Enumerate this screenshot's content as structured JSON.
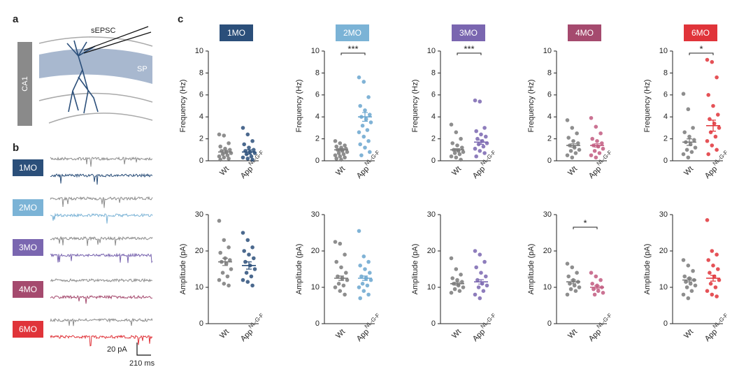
{
  "panels": {
    "a": "a",
    "b": "b",
    "c": "c"
  },
  "diagram": {
    "region": "CA1",
    "recording": "sEPSC",
    "layer": "SP"
  },
  "traces": {
    "ages": [
      "1MO",
      "2MO",
      "3MO",
      "4MO",
      "6MO"
    ],
    "scale_current": "20 pA",
    "scale_time": "210 ms",
    "control_color": "#8c8c8c"
  },
  "chart_data": [
    {
      "type": "strip",
      "title": "1MO",
      "title_color": "#2b4f7a",
      "ylabel": "Frequency (Hz)",
      "ylim": [
        0,
        10
      ],
      "yticks": [
        0,
        2,
        4,
        6,
        8,
        10
      ],
      "categories": [
        "Wt",
        "App"
      ],
      "superscript": "NL-G-F",
      "series": [
        {
          "name": "Wt",
          "color": "#7a7a7a",
          "values": [
            2.4,
            2.3,
            1.6,
            1.3,
            1.1,
            1.0,
            0.9,
            0.8,
            0.7,
            0.6,
            0.5,
            0.4,
            0.3,
            0.2,
            0.1
          ],
          "mean": 0.8,
          "sem": 0.15
        },
        {
          "name": "App",
          "color": "#2b4f7a",
          "values": [
            3.0,
            2.4,
            1.8,
            1.5,
            1.2,
            1.0,
            0.9,
            0.8,
            0.7,
            0.6,
            0.4,
            0.3,
            0.2,
            0.1
          ],
          "mean": 0.8,
          "sem": 0.2
        }
      ]
    },
    {
      "type": "strip",
      "title": "2MO",
      "title_color": "#7bb3d6",
      "ylabel": "Frequency (Hz)",
      "ylim": [
        0,
        10
      ],
      "yticks": [
        0,
        2,
        4,
        6,
        8,
        10
      ],
      "categories": [
        "Wt",
        "App"
      ],
      "superscript": "NL-G-F",
      "significance": "***",
      "series": [
        {
          "name": "Wt",
          "color": "#7a7a7a",
          "values": [
            1.8,
            1.6,
            1.4,
            1.3,
            1.2,
            1.1,
            1.0,
            0.9,
            0.8,
            0.7,
            0.6,
            0.5,
            0.4,
            0.3,
            0.2,
            0.1
          ],
          "mean": 1.0,
          "sem": 0.1
        },
        {
          "name": "App",
          "color": "#6aa6cf",
          "values": [
            7.6,
            7.2,
            5.8,
            5.0,
            4.6,
            4.2,
            4.0,
            3.8,
            3.5,
            3.2,
            2.8,
            2.6,
            2.2,
            1.8,
            1.5,
            1.2,
            0.8,
            0.5
          ],
          "mean": 4.0,
          "sem": 0.4
        }
      ]
    },
    {
      "type": "strip",
      "title": "3MO",
      "title_color": "#7a66b0",
      "ylabel": "Frequency (Hz)",
      "ylim": [
        0,
        10
      ],
      "yticks": [
        0,
        2,
        4,
        6,
        8,
        10
      ],
      "categories": [
        "Wt",
        "App"
      ],
      "superscript": "NL-G-F",
      "significance": "***",
      "series": [
        {
          "name": "Wt",
          "color": "#7a7a7a",
          "values": [
            3.3,
            2.6,
            2.0,
            1.6,
            1.4,
            1.2,
            1.0,
            0.9,
            0.8,
            0.7,
            0.6,
            0.4,
            0.3,
            0.1
          ],
          "mean": 1.0,
          "sem": 0.1
        },
        {
          "name": "App",
          "color": "#7a66b0",
          "values": [
            5.5,
            5.4,
            3.0,
            2.7,
            2.4,
            2.2,
            2.0,
            1.8,
            1.6,
            1.5,
            1.3,
            1.1,
            0.9,
            0.7,
            0.4
          ],
          "mean": 1.7,
          "sem": 0.2
        }
      ]
    },
    {
      "type": "strip",
      "title": "4MO",
      "title_color": "#a54a6e",
      "ylabel": "Frequency (Hz)",
      "ylim": [
        0,
        10
      ],
      "yticks": [
        0,
        2,
        4,
        6,
        8,
        10
      ],
      "categories": [
        "Wt",
        "App"
      ],
      "superscript": "NL-G-F",
      "series": [
        {
          "name": "Wt",
          "color": "#7a7a7a",
          "values": [
            3.7,
            3.0,
            2.5,
            2.1,
            1.8,
            1.6,
            1.4,
            1.2,
            1.0,
            0.9,
            0.7,
            0.5,
            0.3
          ],
          "mean": 1.4,
          "sem": 0.15
        },
        {
          "name": "App",
          "color": "#c25b80",
          "values": [
            3.9,
            3.1,
            2.5,
            2.0,
            1.8,
            1.6,
            1.4,
            1.3,
            1.1,
            0.9,
            0.7,
            0.5,
            0.3
          ],
          "mean": 1.4,
          "sem": 0.15
        }
      ]
    },
    {
      "type": "strip",
      "title": "6MO",
      "title_color": "#e0343a",
      "ylabel": "Frequency (Hz)",
      "ylim": [
        0,
        10
      ],
      "yticks": [
        0,
        2,
        4,
        6,
        8,
        10
      ],
      "categories": [
        "Wt",
        "App"
      ],
      "superscript": "NL-G-F",
      "significance": "*",
      "series": [
        {
          "name": "Wt",
          "color": "#7a7a7a",
          "values": [
            6.1,
            4.7,
            3.0,
            2.6,
            2.2,
            1.9,
            1.7,
            1.5,
            1.2,
            1.0,
            0.8,
            0.6,
            0.3
          ],
          "mean": 1.7,
          "sem": 0.3
        },
        {
          "name": "App",
          "color": "#e0343a",
          "values": [
            9.2,
            9.0,
            7.6,
            6.0,
            5.0,
            4.2,
            3.8,
            3.4,
            3.0,
            2.6,
            2.2,
            1.8,
            1.4,
            1.0,
            0.6
          ],
          "mean": 3.2,
          "sem": 0.5
        }
      ]
    },
    {
      "type": "strip",
      "ylabel": "Amplitude (pA)",
      "ylim": [
        0,
        30
      ],
      "yticks": [
        0,
        10,
        20,
        30
      ],
      "categories": [
        "Wt",
        "App"
      ],
      "superscript": "NL-G-F",
      "series": [
        {
          "name": "Wt",
          "color": "#7a7a7a",
          "values": [
            28.3,
            23.0,
            21.0,
            19.5,
            18.0,
            17.5,
            17.0,
            16.5,
            15.0,
            14.0,
            13.0,
            12.0,
            11.0,
            10.5
          ],
          "mean": 17.0,
          "sem": 1.0
        },
        {
          "name": "App",
          "color": "#2b4f7a",
          "values": [
            25.0,
            23.0,
            21.0,
            20.0,
            19.0,
            18.0,
            17.0,
            16.0,
            15.0,
            14.0,
            13.0,
            12.0,
            11.5,
            10.5
          ],
          "mean": 16.0,
          "sem": 1.0
        }
      ]
    },
    {
      "type": "strip",
      "ylabel": "Amplitude (pA)",
      "ylim": [
        0,
        30
      ],
      "yticks": [
        0,
        10,
        20,
        30
      ],
      "categories": [
        "Wt",
        "App"
      ],
      "superscript": "NL-G-F",
      "series": [
        {
          "name": "Wt",
          "color": "#7a7a7a",
          "values": [
            22.5,
            22.0,
            19.0,
            17.0,
            15.5,
            14.0,
            13.0,
            12.5,
            12.0,
            11.0,
            10.5,
            10.0,
            9.0,
            8.0
          ],
          "mean": 12.5,
          "sem": 0.6
        },
        {
          "name": "App",
          "color": "#6aa6cf",
          "values": [
            25.5,
            18.5,
            17.0,
            16.0,
            15.0,
            14.0,
            13.0,
            12.5,
            12.0,
            11.0,
            10.5,
            10.0,
            9.0,
            8.0,
            7.0
          ],
          "mean": 12.5,
          "sem": 0.6
        }
      ]
    },
    {
      "type": "strip",
      "ylabel": "Amplitude (pA)",
      "ylim": [
        0,
        30
      ],
      "yticks": [
        0,
        10,
        20,
        30
      ],
      "categories": [
        "Wt",
        "App"
      ],
      "superscript": "NL-G-F",
      "series": [
        {
          "name": "Wt",
          "color": "#7a7a7a",
          "values": [
            18.0,
            15.0,
            13.5,
            12.5,
            12.0,
            11.5,
            11.0,
            10.5,
            10.0,
            9.5,
            9.0,
            8.5
          ],
          "mean": 11.0,
          "sem": 0.4
        },
        {
          "name": "App",
          "color": "#7a66b0",
          "values": [
            20.0,
            19.0,
            17.0,
            15.5,
            14.0,
            13.0,
            12.0,
            11.0,
            10.5,
            10.0,
            9.0,
            8.0,
            7.0
          ],
          "mean": 11.5,
          "sem": 0.6
        }
      ]
    },
    {
      "type": "strip",
      "ylabel": "Amplitude (pA)",
      "ylim": [
        0,
        30
      ],
      "yticks": [
        0,
        10,
        20,
        30
      ],
      "categories": [
        "Wt",
        "App"
      ],
      "superscript": "NL-G-F",
      "significance": "*",
      "series": [
        {
          "name": "Wt",
          "color": "#7a7a7a",
          "values": [
            16.5,
            15.5,
            14.0,
            13.0,
            12.0,
            11.5,
            11.0,
            10.5,
            10.0,
            9.5,
            9.0,
            8.0
          ],
          "mean": 11.5,
          "sem": 0.5
        },
        {
          "name": "App",
          "color": "#c25b80",
          "values": [
            14.0,
            13.0,
            12.0,
            11.0,
            10.5,
            10.0,
            9.5,
            9.0,
            8.5,
            8.0
          ],
          "mean": 10.0,
          "sem": 0.4
        }
      ]
    },
    {
      "type": "strip",
      "ylabel": "Amplitude (pA)",
      "ylim": [
        0,
        30
      ],
      "yticks": [
        0,
        10,
        20,
        30
      ],
      "categories": [
        "Wt",
        "App"
      ],
      "superscript": "NL-G-F",
      "series": [
        {
          "name": "Wt",
          "color": "#7a7a7a",
          "values": [
            17.5,
            16.0,
            14.5,
            13.0,
            12.5,
            12.0,
            11.5,
            11.0,
            10.5,
            10.0,
            9.0,
            8.0,
            7.0
          ],
          "mean": 12.0,
          "sem": 0.5
        },
        {
          "name": "App",
          "color": "#e0343a",
          "values": [
            28.5,
            20.0,
            19.0,
            17.5,
            16.0,
            15.0,
            14.0,
            13.0,
            12.0,
            11.0,
            10.0,
            9.0,
            8.0,
            7.5
          ],
          "mean": 12.5,
          "sem": 0.8
        }
      ]
    }
  ]
}
